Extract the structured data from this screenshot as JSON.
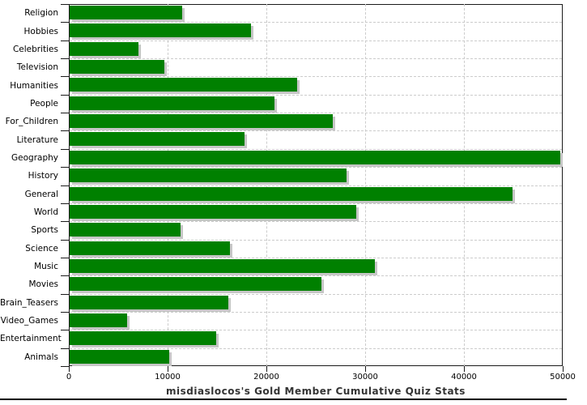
{
  "chart_data": {
    "type": "bar",
    "orientation": "horizontal",
    "title": "misdiaslocos's Gold Member Cumulative Quiz Stats",
    "categories": [
      "Religion",
      "Hobbies",
      "Celebrities",
      "Television",
      "Humanities",
      "People",
      "For_Children",
      "Literature",
      "Geography",
      "History",
      "General",
      "World",
      "Sports",
      "Science",
      "Music",
      "Movies",
      "Brain_Teasers",
      "Video_Games",
      "Entertainment",
      "Animals"
    ],
    "values": [
      11400,
      18400,
      7000,
      9600,
      23000,
      20700,
      26600,
      17700,
      49700,
      28000,
      44800,
      29000,
      11200,
      16200,
      30900,
      25500,
      16100,
      5800,
      14800,
      10100
    ],
    "xlabel": "",
    "ylabel": "",
    "xlim": [
      0,
      50000
    ],
    "x_ticks": [
      0,
      10000,
      20000,
      30000,
      40000,
      50000
    ],
    "grid": "dashed",
    "legend_position": "none",
    "colors": {
      "bar": "#008000",
      "bar_shadow": "#c6c6c6",
      "gridline": "#cccccc",
      "axis": "#1a1a1a",
      "label": "#000000",
      "title": "#333333",
      "background": "#ffffff"
    }
  }
}
